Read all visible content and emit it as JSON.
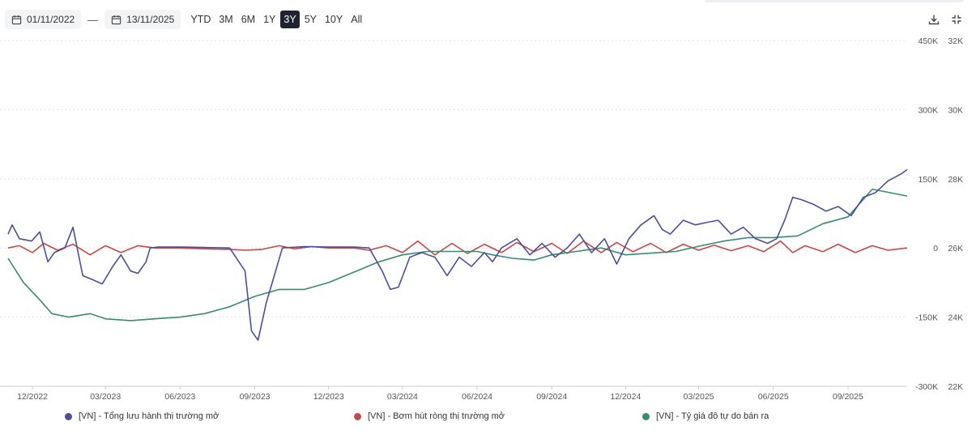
{
  "toolbar": {
    "start_date": "01/11/2022",
    "end_date": "13/11/2025",
    "separator": "—",
    "ranges": [
      "YTD",
      "3M",
      "6M",
      "1Y",
      "3Y",
      "5Y",
      "10Y",
      "All"
    ],
    "active_range": "3Y",
    "download_icon": "download-icon",
    "fullscreen_icon": "fullscreen-icon"
  },
  "colors": {
    "series1": "#4b4f95",
    "series2": "#c44949",
    "series3": "#3a8a73",
    "grid": "#dcdfe4",
    "axis_text": "#555555"
  },
  "chart_data": {
    "type": "line",
    "x_tick_labels": [
      "12/2022",
      "03/2023",
      "06/2023",
      "09/2023",
      "12/2023",
      "03/2024",
      "06/2024",
      "09/2024",
      "12/2024",
      "03/2025",
      "06/2025",
      "09/2025"
    ],
    "left_axis": {
      "ticks": [
        450000,
        300000,
        150000,
        0,
        -150000,
        -300000
      ],
      "labels": [
        "450K",
        "300K",
        "150K",
        "0",
        "-150K",
        "-300K"
      ],
      "range": [
        -300000,
        450000
      ]
    },
    "right_axis": {
      "ticks": [
        32000,
        30000,
        28000,
        26000,
        24000,
        22000
      ],
      "labels": [
        "32K",
        "30K",
        "28K",
        "26K",
        "24K",
        "22K"
      ],
      "range": [
        22000,
        32000
      ]
    },
    "grid": true,
    "legend_position": "bottom",
    "series": [
      {
        "name": "[VN] - Tổng lưu hành thị trường mở",
        "axis": "left",
        "points": [
          [
            "2022-11-01",
            30000
          ],
          [
            "2022-11-06",
            50000
          ],
          [
            "2022-11-15",
            20000
          ],
          [
            "2022-11-30",
            15000
          ],
          [
            "2022-12-10",
            35000
          ],
          [
            "2022-12-20",
            -30000
          ],
          [
            "2022-12-28",
            -10000
          ],
          [
            "2023-01-10",
            0
          ],
          [
            "2023-01-20",
            45000
          ],
          [
            "2023-02-01",
            -60000
          ],
          [
            "2023-02-15",
            -70000
          ],
          [
            "2023-02-25",
            -78000
          ],
          [
            "2023-03-10",
            -40000
          ],
          [
            "2023-03-20",
            -15000
          ],
          [
            "2023-04-01",
            -50000
          ],
          [
            "2023-04-10",
            -55000
          ],
          [
            "2023-04-20",
            -30000
          ],
          [
            "2023-04-25",
            0
          ],
          [
            "2023-05-05",
            2000
          ],
          [
            "2023-06-01",
            2000
          ],
          [
            "2023-07-01",
            1000
          ],
          [
            "2023-08-01",
            0
          ],
          [
            "2023-08-20",
            -50000
          ],
          [
            "2023-08-28",
            -180000
          ],
          [
            "2023-09-05",
            -200000
          ],
          [
            "2023-09-15",
            -120000
          ],
          [
            "2023-09-25",
            -60000
          ],
          [
            "2023-10-05",
            0
          ],
          [
            "2023-11-01",
            3000
          ],
          [
            "2023-12-01",
            2000
          ],
          [
            "2024-01-01",
            2000
          ],
          [
            "2024-01-20",
            0
          ],
          [
            "2024-02-05",
            -50000
          ],
          [
            "2024-02-15",
            -90000
          ],
          [
            "2024-02-25",
            -85000
          ],
          [
            "2024-03-10",
            -20000
          ],
          [
            "2024-03-25",
            -10000
          ],
          [
            "2024-04-10",
            -20000
          ],
          [
            "2024-04-25",
            -60000
          ],
          [
            "2024-05-10",
            -20000
          ],
          [
            "2024-05-25",
            -40000
          ],
          [
            "2024-06-10",
            -10000
          ],
          [
            "2024-06-20",
            -30000
          ],
          [
            "2024-07-01",
            0
          ],
          [
            "2024-07-20",
            20000
          ],
          [
            "2024-08-05",
            -15000
          ],
          [
            "2024-08-20",
            10000
          ],
          [
            "2024-09-05",
            -20000
          ],
          [
            "2024-09-20",
            0
          ],
          [
            "2024-10-05",
            30000
          ],
          [
            "2024-10-20",
            -10000
          ],
          [
            "2024-11-05",
            20000
          ],
          [
            "2024-11-20",
            -35000
          ],
          [
            "2024-12-05",
            20000
          ],
          [
            "2024-12-20",
            50000
          ],
          [
            "2025-01-05",
            70000
          ],
          [
            "2025-01-15",
            40000
          ],
          [
            "2025-01-25",
            30000
          ],
          [
            "2025-02-10",
            60000
          ],
          [
            "2025-02-25",
            50000
          ],
          [
            "2025-03-10",
            55000
          ],
          [
            "2025-03-25",
            60000
          ],
          [
            "2025-04-10",
            30000
          ],
          [
            "2025-04-25",
            45000
          ],
          [
            "2025-05-10",
            20000
          ],
          [
            "2025-05-25",
            10000
          ],
          [
            "2025-06-05",
            20000
          ],
          [
            "2025-06-15",
            60000
          ],
          [
            "2025-06-25",
            110000
          ],
          [
            "2025-07-05",
            105000
          ],
          [
            "2025-07-20",
            95000
          ],
          [
            "2025-08-05",
            80000
          ],
          [
            "2025-08-20",
            90000
          ],
          [
            "2025-09-05",
            70000
          ],
          [
            "2025-09-20",
            110000
          ],
          [
            "2025-10-05",
            120000
          ],
          [
            "2025-10-20",
            145000
          ],
          [
            "2025-11-05",
            160000
          ],
          [
            "2025-11-13",
            170000
          ]
        ]
      },
      {
        "name": "[VN] - Bơm hút ròng thị trường mở",
        "axis": "left",
        "points": [
          [
            "2022-11-01",
            0
          ],
          [
            "2022-11-15",
            5000
          ],
          [
            "2022-12-01",
            -10000
          ],
          [
            "2022-12-15",
            10000
          ],
          [
            "2023-01-01",
            -5000
          ],
          [
            "2023-01-20",
            8000
          ],
          [
            "2023-02-10",
            -15000
          ],
          [
            "2023-03-01",
            5000
          ],
          [
            "2023-03-20",
            -10000
          ],
          [
            "2023-04-10",
            5000
          ],
          [
            "2023-05-01",
            0
          ],
          [
            "2023-06-01",
            0
          ],
          [
            "2023-07-01",
            -2000
          ],
          [
            "2023-08-01",
            -3000
          ],
          [
            "2023-08-20",
            -5000
          ],
          [
            "2023-09-10",
            -3000
          ],
          [
            "2023-10-01",
            5000
          ],
          [
            "2023-10-20",
            -2000
          ],
          [
            "2023-11-10",
            3000
          ],
          [
            "2023-12-01",
            0
          ],
          [
            "2024-01-01",
            0
          ],
          [
            "2024-01-20",
            -5000
          ],
          [
            "2024-02-10",
            5000
          ],
          [
            "2024-03-01",
            -10000
          ],
          [
            "2024-03-20",
            15000
          ],
          [
            "2024-04-10",
            -15000
          ],
          [
            "2024-05-01",
            10000
          ],
          [
            "2024-05-20",
            -12000
          ],
          [
            "2024-06-10",
            8000
          ],
          [
            "2024-07-01",
            -10000
          ],
          [
            "2024-07-20",
            12000
          ],
          [
            "2024-08-10",
            -8000
          ],
          [
            "2024-09-01",
            10000
          ],
          [
            "2024-09-20",
            -12000
          ],
          [
            "2024-10-10",
            15000
          ],
          [
            "2024-11-01",
            -10000
          ],
          [
            "2024-11-20",
            12000
          ],
          [
            "2024-12-10",
            -8000
          ],
          [
            "2025-01-01",
            10000
          ],
          [
            "2025-01-20",
            -10000
          ],
          [
            "2025-02-10",
            8000
          ],
          [
            "2025-03-01",
            -5000
          ],
          [
            "2025-03-20",
            6000
          ],
          [
            "2025-04-10",
            -6000
          ],
          [
            "2025-05-01",
            5000
          ],
          [
            "2025-05-20",
            -8000
          ],
          [
            "2025-06-10",
            15000
          ],
          [
            "2025-06-25",
            -10000
          ],
          [
            "2025-07-10",
            5000
          ],
          [
            "2025-08-01",
            -8000
          ],
          [
            "2025-08-20",
            8000
          ],
          [
            "2025-09-10",
            -10000
          ],
          [
            "2025-10-01",
            5000
          ],
          [
            "2025-10-20",
            -5000
          ],
          [
            "2025-11-13",
            0
          ]
        ]
      },
      {
        "name": "[VN] - Tỷ giá đô tự do bán ra",
        "axis": "right",
        "points": [
          [
            "2022-11-01",
            25700
          ],
          [
            "2022-11-20",
            25000
          ],
          [
            "2022-12-10",
            24500
          ],
          [
            "2022-12-25",
            24100
          ],
          [
            "2023-01-15",
            24000
          ],
          [
            "2023-02-10",
            24100
          ],
          [
            "2023-03-01",
            23950
          ],
          [
            "2023-04-01",
            23900
          ],
          [
            "2023-05-01",
            23950
          ],
          [
            "2023-06-01",
            24000
          ],
          [
            "2023-07-01",
            24100
          ],
          [
            "2023-08-01",
            24300
          ],
          [
            "2023-09-01",
            24600
          ],
          [
            "2023-10-01",
            24800
          ],
          [
            "2023-11-01",
            24800
          ],
          [
            "2023-12-01",
            25000
          ],
          [
            "2024-01-01",
            25300
          ],
          [
            "2024-02-01",
            25600
          ],
          [
            "2024-03-01",
            25800
          ],
          [
            "2024-04-01",
            25900
          ],
          [
            "2024-05-01",
            25900
          ],
          [
            "2024-06-01",
            25900
          ],
          [
            "2024-06-20",
            25800
          ],
          [
            "2024-07-15",
            25700
          ],
          [
            "2024-08-10",
            25650
          ],
          [
            "2024-09-01",
            25800
          ],
          [
            "2024-10-01",
            25900
          ],
          [
            "2024-11-01",
            26000
          ],
          [
            "2024-12-01",
            25800
          ],
          [
            "2025-01-01",
            25850
          ],
          [
            "2025-02-01",
            25900
          ],
          [
            "2025-03-01",
            26050
          ],
          [
            "2025-04-01",
            26200
          ],
          [
            "2025-05-01",
            26300
          ],
          [
            "2025-06-01",
            26300
          ],
          [
            "2025-07-01",
            26350
          ],
          [
            "2025-08-01",
            26700
          ],
          [
            "2025-09-01",
            26900
          ],
          [
            "2025-10-01",
            27700
          ],
          [
            "2025-11-13",
            27500
          ]
        ]
      }
    ]
  },
  "legend": {
    "items": [
      "[VN] - Tổng lưu hành thị trường mở",
      "[VN] - Bơm hút ròng thị trường mở",
      "[VN] - Tỷ giá đô tự do bán ra"
    ]
  }
}
